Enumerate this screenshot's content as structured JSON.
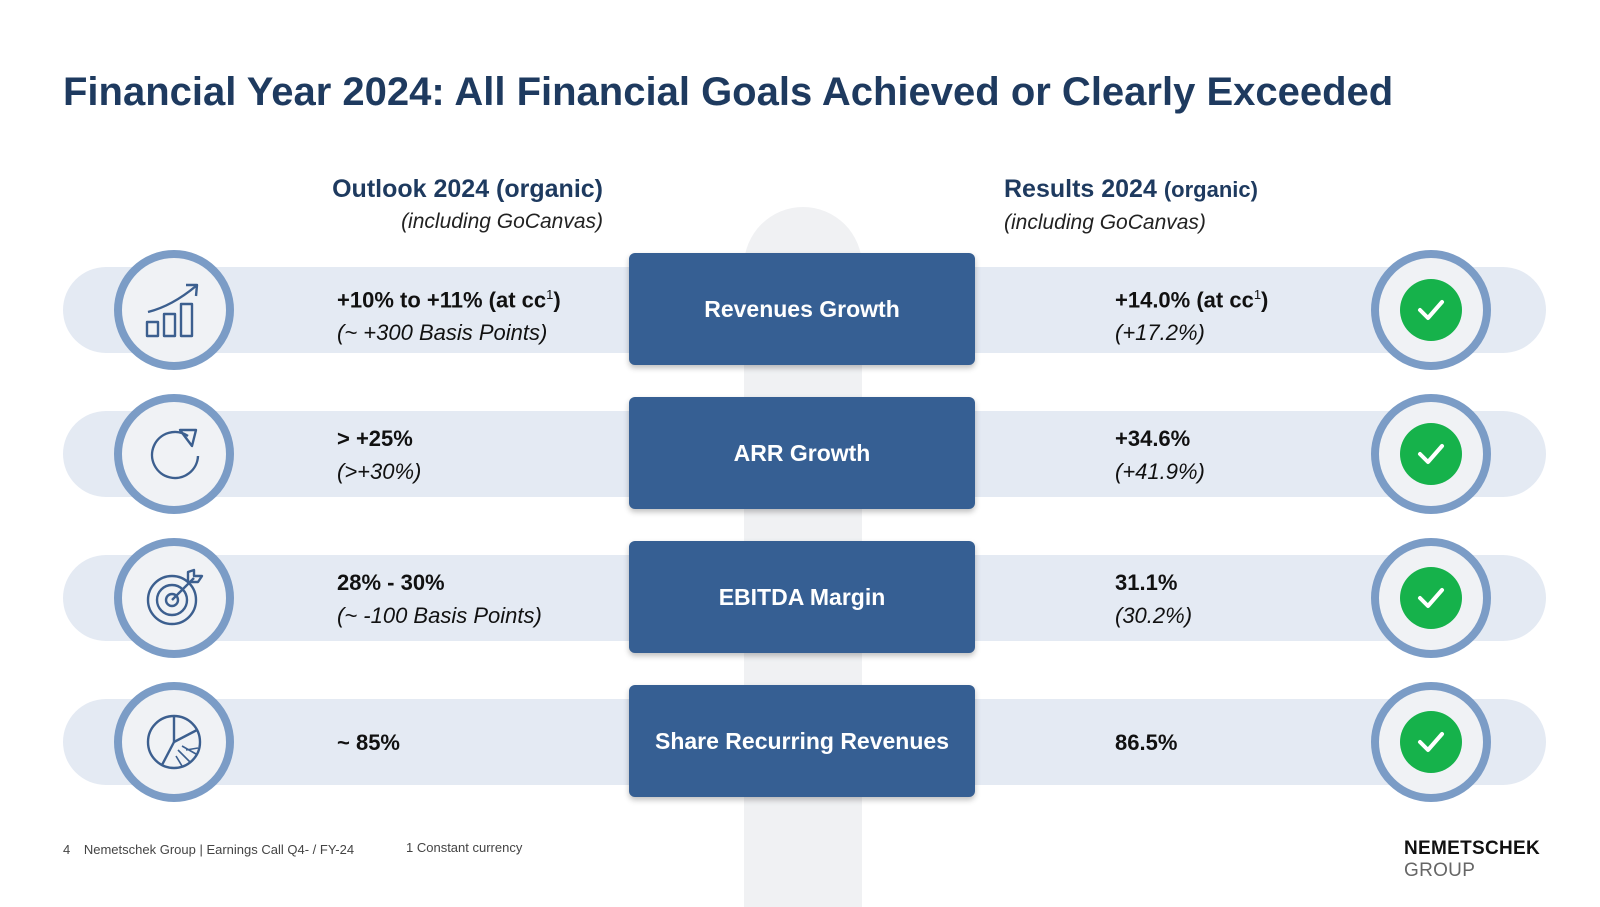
{
  "title": "Financial Year 2024: All Financial Goals Achieved or Clearly Exceeded",
  "outlook_header": {
    "title": "Outlook 2024 (organic)",
    "subtitle": "(including GoCanvas)"
  },
  "results_header": {
    "title": "Results 2024",
    "title_paren": "(organic)",
    "subtitle": "(including GoCanvas)"
  },
  "rows": [
    {
      "icon": "bar-chart-growth-icon",
      "label": "Revenues Growth",
      "outlook_main": "+10% to +11% (at cc",
      "outlook_sup": "1",
      "outlook_close": ")",
      "outlook_note": "(~ +300 Basis Points)",
      "result_main": "+14.0% (at cc",
      "result_sup": "1",
      "result_close": ")",
      "result_note": "(+17.2%)"
    },
    {
      "icon": "refresh-arrow-icon",
      "label": "ARR Growth",
      "outlook_main": "> +25%",
      "outlook_note": "(>+30%)",
      "result_main": "+34.6%",
      "result_note": "(+41.9%)"
    },
    {
      "icon": "target-arrow-icon",
      "label": "EBITDA Margin",
      "outlook_main": "28% - 30%",
      "outlook_note": "(~ -100 Basis Points)",
      "result_main": "31.1%",
      "result_note": "(30.2%)"
    },
    {
      "icon": "pie-chart-icon",
      "label": "Share Recurring Revenues",
      "outlook_main": "~ 85%",
      "result_main": "86.5%"
    }
  ],
  "status_icon": "check-circle-icon",
  "colors": {
    "title": "#1e3a5f",
    "box": "#365f93",
    "ring": "#7b9cc6",
    "band": "#e4eaf3",
    "check": "#16b24b"
  },
  "footer": {
    "page": "4",
    "source": "Nemetschek Group | Earnings Call Q4- / FY-24",
    "footnote": "1 Constant currency"
  },
  "logo": {
    "line1": "NEMETSCHEK",
    "line2": "GROUP"
  }
}
